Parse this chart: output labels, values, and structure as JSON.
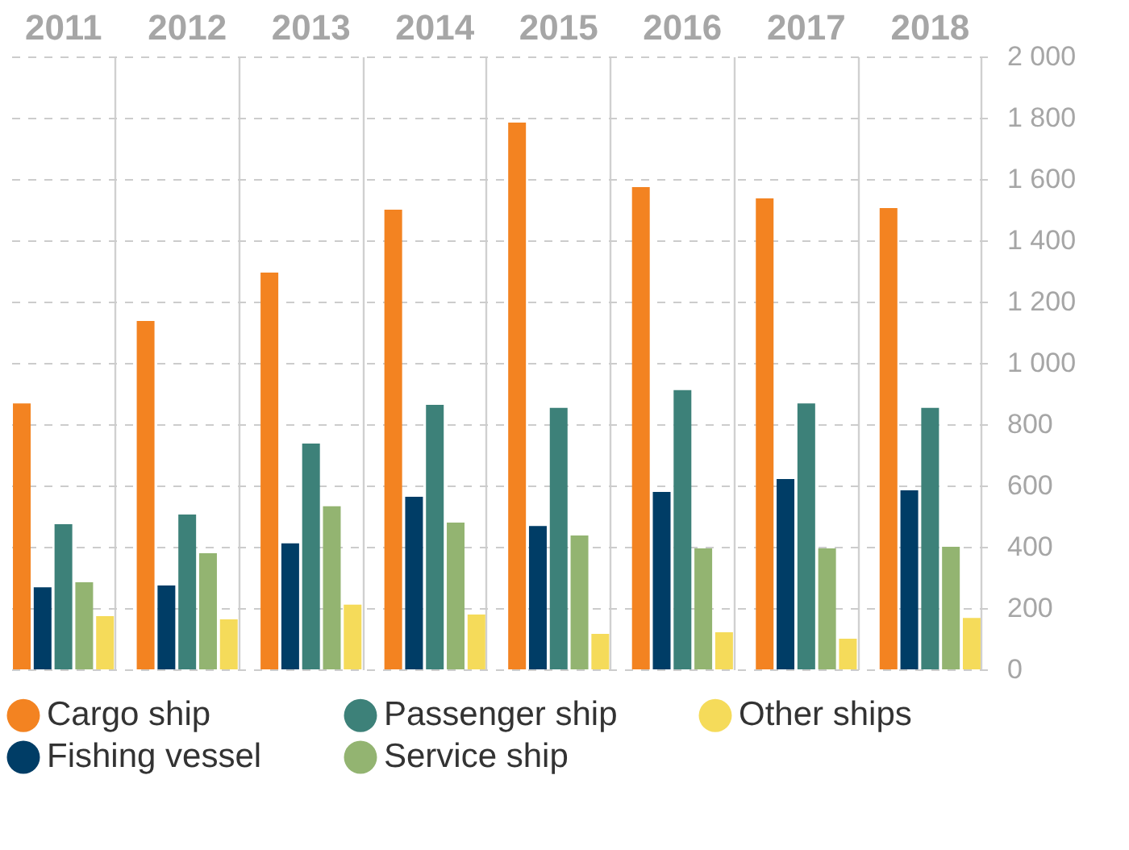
{
  "chart_data": {
    "type": "bar",
    "categories": [
      "2011",
      "2012",
      "2013",
      "2014",
      "2015",
      "2016",
      "2017",
      "2018"
    ],
    "series": [
      {
        "name": "Cargo ship",
        "color": "#f38321",
        "values": [
          868,
          1137,
          1295,
          1500,
          1784,
          1574,
          1537,
          1505
        ]
      },
      {
        "name": "Fishing vessel",
        "color": "#003d66",
        "values": [
          268,
          274,
          411,
          563,
          468,
          579,
          621,
          584
        ]
      },
      {
        "name": "Passenger ship",
        "color": "#3d8179",
        "values": [
          474,
          505,
          737,
          863,
          853,
          911,
          868,
          853
        ]
      },
      {
        "name": "Service ship",
        "color": "#93b471",
        "values": [
          284,
          379,
          532,
          479,
          437,
          395,
          395,
          400
        ]
      },
      {
        "name": "Other ships",
        "color": "#f5db5a",
        "values": [
          174,
          163,
          211,
          179,
          116,
          121,
          100,
          168
        ]
      }
    ],
    "ylim": [
      0,
      2000
    ],
    "yticks": [
      0,
      200,
      400,
      600,
      800,
      {
        "value": 1000,
        "label": "1 000"
      },
      {
        "value": 1200,
        "label": "1 200"
      },
      {
        "value": 1400,
        "label": "1 400"
      },
      {
        "value": 1600,
        "label": "1 600"
      },
      {
        "value": 1800,
        "label": "1 800"
      },
      {
        "value": 2000,
        "label": "2 000"
      }
    ],
    "grid": true,
    "legend": "bottom"
  }
}
